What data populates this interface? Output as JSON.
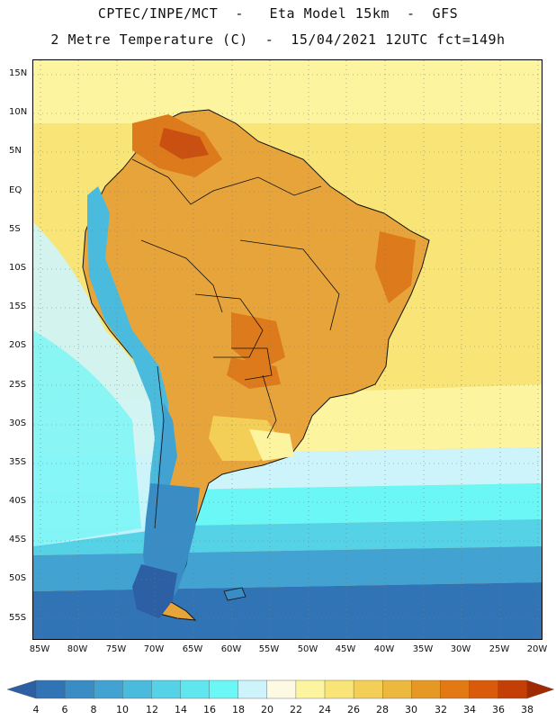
{
  "header": {
    "line1": "CPTEC/INPE/MCT  -   Eta Model 15km  -  GFS",
    "line2": "2 Metre Temperature (C)  -  15/04/2021 12UTC fct=149h"
  },
  "axes": {
    "lat_labels": [
      "15N",
      "10N",
      "5N",
      "EQ",
      "5S",
      "10S",
      "15S",
      "20S",
      "25S",
      "30S",
      "35S",
      "40S",
      "45S",
      "50S",
      "55S"
    ],
    "lon_labels": [
      "85W",
      "80W",
      "75W",
      "70W",
      "65W",
      "60W",
      "55W",
      "50W",
      "45W",
      "40W",
      "35W",
      "30W",
      "25W",
      "20W"
    ]
  },
  "colorbar": {
    "ticks": [
      "4",
      "6",
      "8",
      "10",
      "12",
      "14",
      "16",
      "18",
      "20",
      "22",
      "24",
      "26",
      "28",
      "30",
      "32",
      "34",
      "36",
      "38"
    ],
    "colors": [
      "#2c5fa3",
      "#3174b5",
      "#3a8cc5",
      "#42a2d2",
      "#4bbbdd",
      "#55d2e6",
      "#5fe6ee",
      "#6af7f6",
      "#cdf4fb",
      "#fdf9e2",
      "#fdf4a0",
      "#f9e477",
      "#f3cf57",
      "#ecb83d",
      "#e59924",
      "#e27913",
      "#da5a0c",
      "#c33f06",
      "#a02b02"
    ]
  },
  "map": {
    "ocean": "#fcd257",
    "land_warm": "#e7a43a",
    "land_hot": "#dc7a1c",
    "land_hottest": "#c95011",
    "andes_cold": "#4bbbdd",
    "andes_colder": "#42a2d2",
    "patagonia": "#3a8cc5",
    "sea_cool": "#55d2e6",
    "sea_cold": "#3174b5",
    "coast_line": "#111111"
  }
}
